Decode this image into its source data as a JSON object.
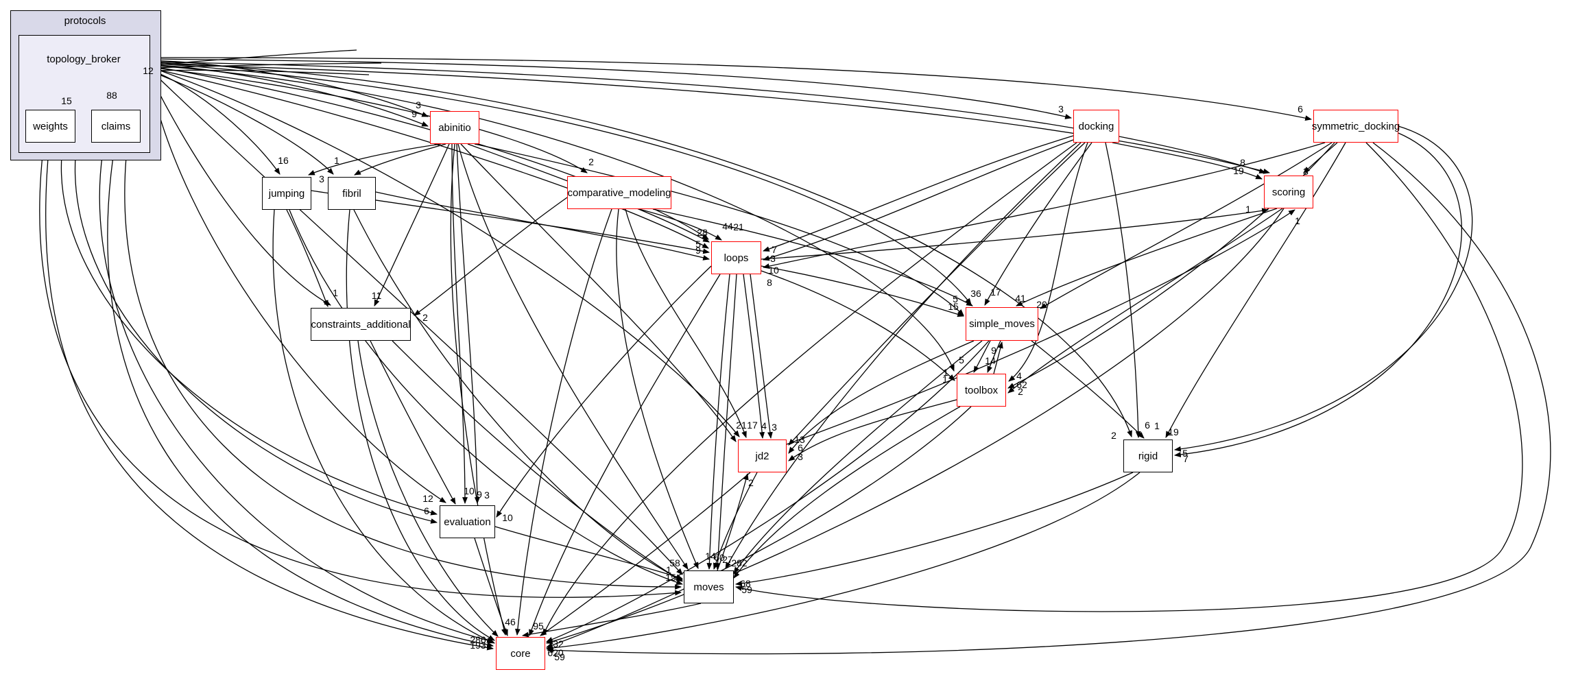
{
  "graph": {
    "cluster_label": "protocols",
    "focus_label": "topology_broker"
  },
  "nodes": {
    "weights": "weights",
    "claims": "claims",
    "abinitio": "abinitio",
    "jumping": "jumping",
    "fibril": "fibril",
    "comparative_modeling": "comparative_modeling",
    "docking": "docking",
    "symmetric_docking": "symmetric_docking",
    "scoring": "scoring",
    "loops": "loops",
    "constraints_additional": "constraints_additional",
    "simple_moves": "simple_moves",
    "toolbox": "toolbox",
    "jd2": "jd2",
    "rigid": "rigid",
    "evaluation": "evaluation",
    "moves": "moves",
    "core": "core"
  },
  "colors": {
    "red_node_border": "#ff0000",
    "plain_node_border": "#000000",
    "cluster_fill": "#d9d9e9",
    "focus_fill": "#edecf7",
    "edge": "#000000"
  },
  "edge_labels": [
    {
      "text": "15"
    },
    {
      "text": "88"
    },
    {
      "text": "12"
    },
    {
      "text": "3"
    },
    {
      "text": "9"
    },
    {
      "text": "16"
    },
    {
      "text": "1"
    },
    {
      "text": "3"
    },
    {
      "text": "2"
    },
    {
      "text": "3"
    },
    {
      "text": "6"
    },
    {
      "text": "8"
    },
    {
      "text": "19"
    },
    {
      "text": "3"
    },
    {
      "text": "1"
    },
    {
      "text": "1"
    },
    {
      "text": "28"
    },
    {
      "text": "44"
    },
    {
      "text": "21"
    },
    {
      "text": "5"
    },
    {
      "text": "9"
    },
    {
      "text": "7"
    },
    {
      "text": "3"
    },
    {
      "text": "10"
    },
    {
      "text": "8"
    },
    {
      "text": "1"
    },
    {
      "text": "11"
    },
    {
      "text": "2"
    },
    {
      "text": "36"
    },
    {
      "text": "17"
    },
    {
      "text": "41"
    },
    {
      "text": "20"
    },
    {
      "text": "5"
    },
    {
      "text": "15"
    },
    {
      "text": "9"
    },
    {
      "text": "5"
    },
    {
      "text": "14"
    },
    {
      "text": "1"
    },
    {
      "text": "1"
    },
    {
      "text": "4"
    },
    {
      "text": "62"
    },
    {
      "text": "2"
    },
    {
      "text": "21"
    },
    {
      "text": "17"
    },
    {
      "text": "4"
    },
    {
      "text": "3"
    },
    {
      "text": "13"
    },
    {
      "text": "6"
    },
    {
      "text": "3"
    },
    {
      "text": "2"
    },
    {
      "text": "2"
    },
    {
      "text": "6"
    },
    {
      "text": "1"
    },
    {
      "text": "19"
    },
    {
      "text": "5"
    },
    {
      "text": "7"
    },
    {
      "text": "12"
    },
    {
      "text": "6"
    },
    {
      "text": "10"
    },
    {
      "text": "9"
    },
    {
      "text": "3"
    },
    {
      "text": "10"
    },
    {
      "text": "58"
    },
    {
      "text": "1"
    },
    {
      "text": "15"
    },
    {
      "text": "14"
    },
    {
      "text": "60"
    },
    {
      "text": "27"
    },
    {
      "text": "282"
    },
    {
      "text": "68"
    },
    {
      "text": "59"
    },
    {
      "text": "46"
    },
    {
      "text": "95"
    },
    {
      "text": "32"
    },
    {
      "text": "286"
    },
    {
      "text": "193"
    },
    {
      "text": "620"
    },
    {
      "text": "59"
    }
  ]
}
